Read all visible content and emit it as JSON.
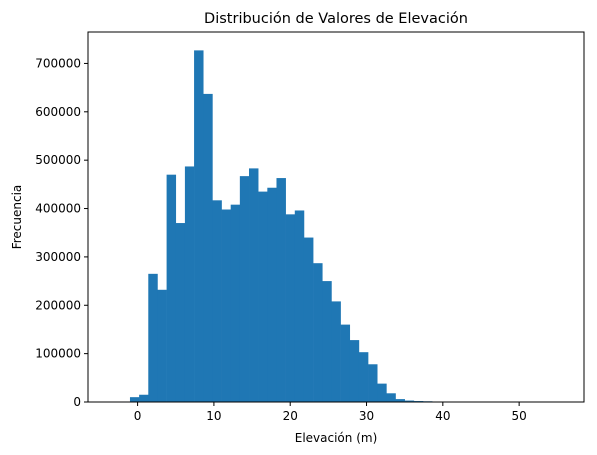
{
  "chart_data": {
    "type": "bar",
    "title": "Distribución de Valores de Elevación",
    "xlabel": "Elevación (m)",
    "ylabel": "Frecuencia",
    "xlim": [
      -6.5,
      58.5
    ],
    "ylim": [
      0,
      765000
    ],
    "bin_edges": [
      -1,
      0.2,
      1.4,
      2.6,
      3.8,
      5.0,
      6.2,
      7.4,
      8.6,
      9.8,
      11.0,
      12.2,
      13.4,
      14.6,
      15.8,
      17.0,
      18.2,
      19.4,
      20.6,
      21.8,
      23.0,
      24.2,
      25.4,
      26.6,
      27.8,
      29.0,
      30.2,
      31.4,
      32.6,
      33.8,
      35.0,
      36.2,
      37.4,
      38.6,
      39.8,
      41.0,
      42.2,
      43.4,
      44.6,
      45.8,
      47.0,
      48.2,
      49.4,
      50.6,
      51.8,
      53.0,
      54.2,
      55.4,
      56.6
    ],
    "values": [
      10000,
      15000,
      265000,
      232000,
      470000,
      370000,
      487000,
      727000,
      637000,
      417000,
      398000,
      408000,
      467000,
      483000,
      435000,
      443000,
      463000,
      388000,
      396000,
      340000,
      287000,
      250000,
      208000,
      160000,
      128000,
      103000,
      78000,
      38000,
      18000,
      6000,
      3000,
      2000,
      1500,
      1000,
      500,
      0,
      0,
      0,
      0,
      0,
      0,
      0,
      0,
      0,
      0,
      0,
      0,
      0
    ],
    "x_ticks": [
      0,
      10,
      20,
      30,
      40,
      50
    ],
    "y_ticks": [
      0,
      100000,
      200000,
      300000,
      400000,
      500000,
      600000,
      700000
    ],
    "grid": false,
    "bar_color": "#1f77b4"
  }
}
